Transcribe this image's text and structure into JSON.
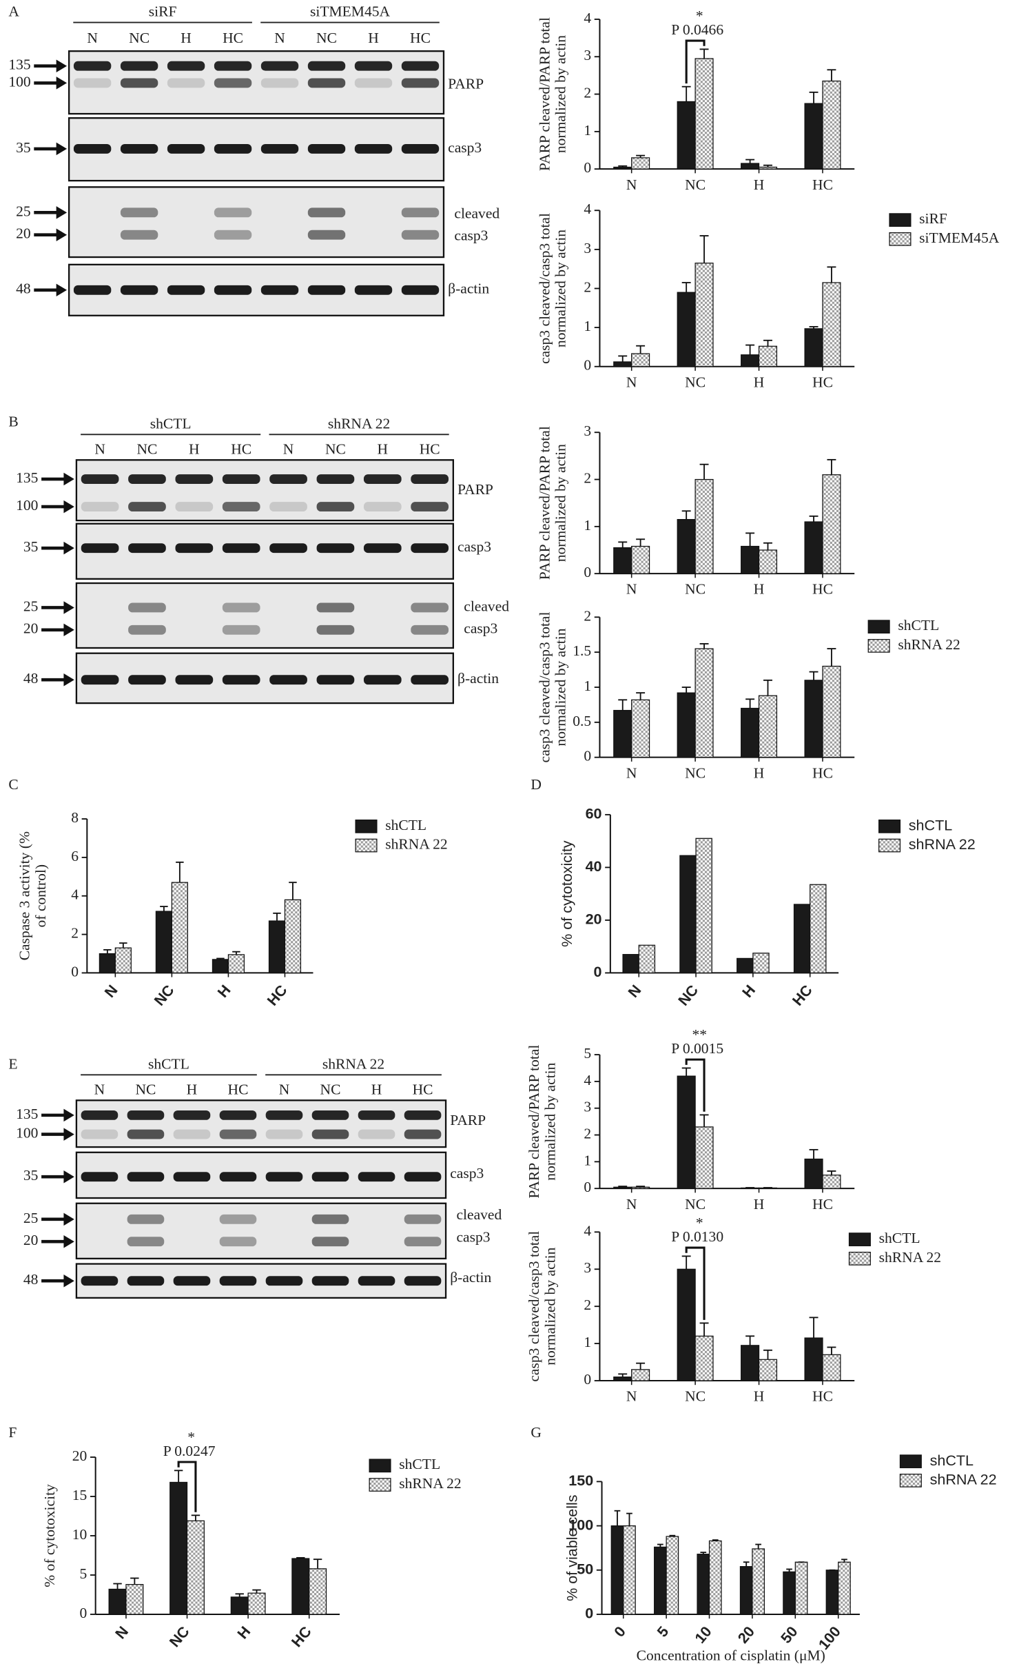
{
  "panels": [
    "A",
    "B",
    "C",
    "D",
    "E",
    "F",
    "G"
  ],
  "blots": [
    {
      "groups": [
        "siRF",
        "siTMEM45A"
      ],
      "lanes": [
        "N",
        "NC",
        "H",
        "HC",
        "N",
        "NC",
        "H",
        "HC"
      ],
      "rows": [
        {
          "markers": [
            135,
            100
          ],
          "label": [
            "PARP"
          ]
        },
        {
          "markers": [
            35
          ],
          "label": [
            "casp3"
          ]
        },
        {
          "markers": [
            25,
            20
          ],
          "label": [
            "cleaved",
            "casp3"
          ]
        },
        {
          "markers": [
            48
          ],
          "label": [
            "β-actin"
          ]
        }
      ]
    },
    {
      "groups": [
        "shCTL",
        "shRNA 22"
      ],
      "lanes": [
        "N",
        "NC",
        "H",
        "HC",
        "N",
        "NC",
        "H",
        "HC"
      ],
      "rows": [
        {
          "markers": [
            135,
            100
          ],
          "label": [
            "PARP"
          ]
        },
        {
          "markers": [
            35
          ],
          "label": [
            "casp3"
          ]
        },
        {
          "markers": [
            25,
            20
          ],
          "label": [
            "cleaved",
            "casp3"
          ]
        },
        {
          "markers": [
            48
          ],
          "label": [
            "β-actin"
          ]
        }
      ]
    },
    {
      "groups": [
        "shCTL",
        "shRNA 22"
      ],
      "lanes": [
        "N",
        "NC",
        "H",
        "HC",
        "N",
        "NC",
        "H",
        "HC"
      ],
      "rows": [
        {
          "markers": [
            135,
            100
          ],
          "label": [
            "PARP"
          ]
        },
        {
          "markers": [
            35
          ],
          "label": [
            "casp3"
          ]
        },
        {
          "markers": [
            25,
            20
          ],
          "label": [
            "cleaved",
            "casp3"
          ]
        },
        {
          "markers": [
            48
          ],
          "label": [
            "β-actin"
          ]
        }
      ]
    }
  ],
  "chart_data": [
    {
      "type": "bar",
      "ylabel": [
        "PARP cleaved/PARP total",
        "normalized by actin"
      ],
      "categories": [
        "N",
        "NC",
        "H",
        "HC"
      ],
      "series": [
        {
          "name": "siRF",
          "color": "#1a1a1a",
          "values": [
            0.05,
            1.8,
            0.15,
            1.75
          ],
          "errors": [
            0.03,
            0.4,
            0.1,
            0.3
          ]
        },
        {
          "name": "siTMEM45A",
          "color": "#9a9a9a",
          "pattern": "checkered",
          "values": [
            0.3,
            2.95,
            0.05,
            2.35
          ],
          "errors": [
            0.06,
            0.25,
            0.05,
            0.3
          ]
        }
      ],
      "ylim": [
        0,
        4
      ],
      "yticks": [
        0,
        1,
        2,
        3,
        4
      ],
      "annotation": {
        "stars": "*",
        "text": "P 0.0466"
      }
    },
    {
      "type": "bar",
      "ylabel": [
        "casp3 cleaved/casp3 total",
        "normalized by actin"
      ],
      "categories": [
        "N",
        "NC",
        "H",
        "HC"
      ],
      "series": [
        {
          "name": "siRF",
          "color": "#1a1a1a",
          "values": [
            0.12,
            1.9,
            0.3,
            0.97
          ],
          "errors": [
            0.15,
            0.25,
            0.25,
            0.05
          ]
        },
        {
          "name": "siTMEM45A",
          "color": "#9a9a9a",
          "pattern": "checkered",
          "values": [
            0.33,
            2.65,
            0.52,
            2.15
          ],
          "errors": [
            0.2,
            0.7,
            0.15,
            0.4
          ]
        }
      ],
      "ylim": [
        0,
        4
      ],
      "yticks": [
        0,
        1,
        2,
        3,
        4
      ]
    },
    {
      "type": "bar",
      "ylabel": [
        "PARP cleaved/PARP total",
        "normalized by actin"
      ],
      "categories": [
        "N",
        "NC",
        "H",
        "HC"
      ],
      "series": [
        {
          "name": "shCTL",
          "color": "#1a1a1a",
          "values": [
            0.55,
            1.15,
            0.58,
            1.1
          ],
          "errors": [
            0.12,
            0.18,
            0.28,
            0.12
          ]
        },
        {
          "name": "shRNA 22",
          "color": "#9a9a9a",
          "pattern": "checkered",
          "values": [
            0.58,
            2.0,
            0.5,
            2.1
          ],
          "errors": [
            0.15,
            0.32,
            0.15,
            0.32
          ]
        }
      ],
      "ylim": [
        0,
        3
      ],
      "yticks": [
        0,
        1,
        2,
        3
      ]
    },
    {
      "type": "bar",
      "ylabel": [
        "casp3 cleaved/casp3 total",
        "normalized by actin"
      ],
      "categories": [
        "N",
        "NC",
        "H",
        "HC"
      ],
      "series": [
        {
          "name": "shCTL",
          "color": "#1a1a1a",
          "values": [
            0.67,
            0.92,
            0.7,
            1.1
          ],
          "errors": [
            0.15,
            0.08,
            0.13,
            0.12
          ]
        },
        {
          "name": "shRNA 22",
          "color": "#9a9a9a",
          "pattern": "checkered",
          "values": [
            0.82,
            1.55,
            0.88,
            1.3
          ],
          "errors": [
            0.1,
            0.07,
            0.22,
            0.25
          ]
        }
      ],
      "ylim": [
        0,
        2
      ],
      "yticks": [
        0,
        0.5,
        1,
        1.5,
        2
      ]
    },
    {
      "type": "bar",
      "ylabel": [
        "Caspase 3 activity (%",
        "of control)"
      ],
      "categories": [
        "N",
        "NC",
        "H",
        "HC"
      ],
      "series": [
        {
          "name": "shCTL",
          "color": "#1a1a1a",
          "values": [
            1.0,
            3.2,
            0.7,
            2.7
          ],
          "errors": [
            0.2,
            0.25,
            0.05,
            0.4
          ]
        },
        {
          "name": "shRNA 22",
          "color": "#9a9a9a",
          "pattern": "checkered",
          "values": [
            1.3,
            4.7,
            0.95,
            3.8
          ],
          "errors": [
            0.25,
            1.05,
            0.15,
            0.9
          ]
        }
      ],
      "ylim": [
        0,
        8
      ],
      "yticks": [
        0,
        2,
        4,
        6,
        8
      ]
    },
    {
      "type": "bar",
      "ylabel": [
        "% of cytotoxicity"
      ],
      "categories": [
        "N",
        "NC",
        "H",
        "HC"
      ],
      "series": [
        {
          "name": "shCTL",
          "color": "#1a1a1a",
          "values": [
            7,
            44.5,
            5.5,
            26
          ]
        },
        {
          "name": "shRNA 22",
          "color": "#9a9a9a",
          "pattern": "checkered",
          "values": [
            10.5,
            51,
            7.5,
            33.5
          ]
        }
      ],
      "ylim": [
        0,
        60
      ],
      "yticks": [
        0,
        20,
        40,
        60
      ]
    },
    {
      "type": "bar",
      "ylabel": [
        "PARP cleaved/PARP total",
        "normalized by actin"
      ],
      "categories": [
        "N",
        "NC",
        "H",
        "HC"
      ],
      "series": [
        {
          "name": "shCTL",
          "color": "#1a1a1a",
          "values": [
            0.05,
            4.2,
            0.02,
            1.1
          ],
          "errors": [
            0.03,
            0.3,
            0.01,
            0.35
          ]
        },
        {
          "name": "shRNA 22",
          "color": "#9a9a9a",
          "pattern": "checkered",
          "values": [
            0.05,
            2.3,
            0.02,
            0.5
          ],
          "errors": [
            0.03,
            0.45,
            0.01,
            0.15
          ]
        }
      ],
      "ylim": [
        0,
        5
      ],
      "yticks": [
        0,
        1,
        2,
        3,
        4,
        5
      ],
      "annotation": {
        "stars": "**",
        "text": "P 0.0015"
      }
    },
    {
      "type": "bar",
      "ylabel": [
        "casp3 cleaved/casp3 total",
        "normalized by actin"
      ],
      "categories": [
        "N",
        "NC",
        "H",
        "HC"
      ],
      "series": [
        {
          "name": "shCTL",
          "color": "#1a1a1a",
          "values": [
            0.1,
            3.0,
            0.95,
            1.15
          ],
          "errors": [
            0.08,
            0.35,
            0.25,
            0.55
          ]
        },
        {
          "name": "shRNA 22",
          "color": "#9a9a9a",
          "pattern": "checkered",
          "values": [
            0.3,
            1.2,
            0.57,
            0.7
          ],
          "errors": [
            0.17,
            0.35,
            0.25,
            0.2
          ]
        }
      ],
      "ylim": [
        0,
        4
      ],
      "yticks": [
        0,
        1,
        2,
        3,
        4
      ],
      "annotation": {
        "stars": "*",
        "text": "P 0.0130"
      }
    },
    {
      "type": "bar",
      "ylabel": [
        "% of cytotoxicity"
      ],
      "categories": [
        "N",
        "NC",
        "H",
        "HC"
      ],
      "series": [
        {
          "name": "shCTL",
          "color": "#1a1a1a",
          "values": [
            3.2,
            16.8,
            2.2,
            7.1
          ],
          "errors": [
            0.7,
            1.5,
            0.4,
            0.1
          ]
        },
        {
          "name": "shRNA 22",
          "color": "#9a9a9a",
          "pattern": "checkered",
          "values": [
            3.8,
            11.9,
            2.7,
            5.8
          ],
          "errors": [
            0.8,
            0.7,
            0.4,
            1.2
          ]
        }
      ],
      "ylim": [
        0,
        20
      ],
      "yticks": [
        0,
        5,
        10,
        15,
        20
      ],
      "annotation": {
        "stars": "*",
        "text": "P 0.0247"
      }
    },
    {
      "type": "bar",
      "ylabel": [
        "% of viable cells"
      ],
      "xlabel": "Concentration of cisplatin (μM)",
      "categories": [
        "0",
        "5",
        "10",
        "20",
        "50",
        "100"
      ],
      "series": [
        {
          "name": "shCTL",
          "color": "#1a1a1a",
          "values": [
            100,
            76,
            68,
            54,
            48,
            50
          ],
          "errors": [
            17,
            3,
            2,
            5,
            3,
            0
          ]
        },
        {
          "name": "shRNA 22",
          "color": "#9a9a9a",
          "pattern": "checkered",
          "values": [
            100,
            88,
            83,
            74,
            59,
            59
          ],
          "errors": [
            14,
            1,
            1,
            5,
            0,
            3
          ]
        }
      ],
      "ylim": [
        0,
        150
      ],
      "yticks": [
        0,
        50,
        100,
        150
      ]
    }
  ]
}
